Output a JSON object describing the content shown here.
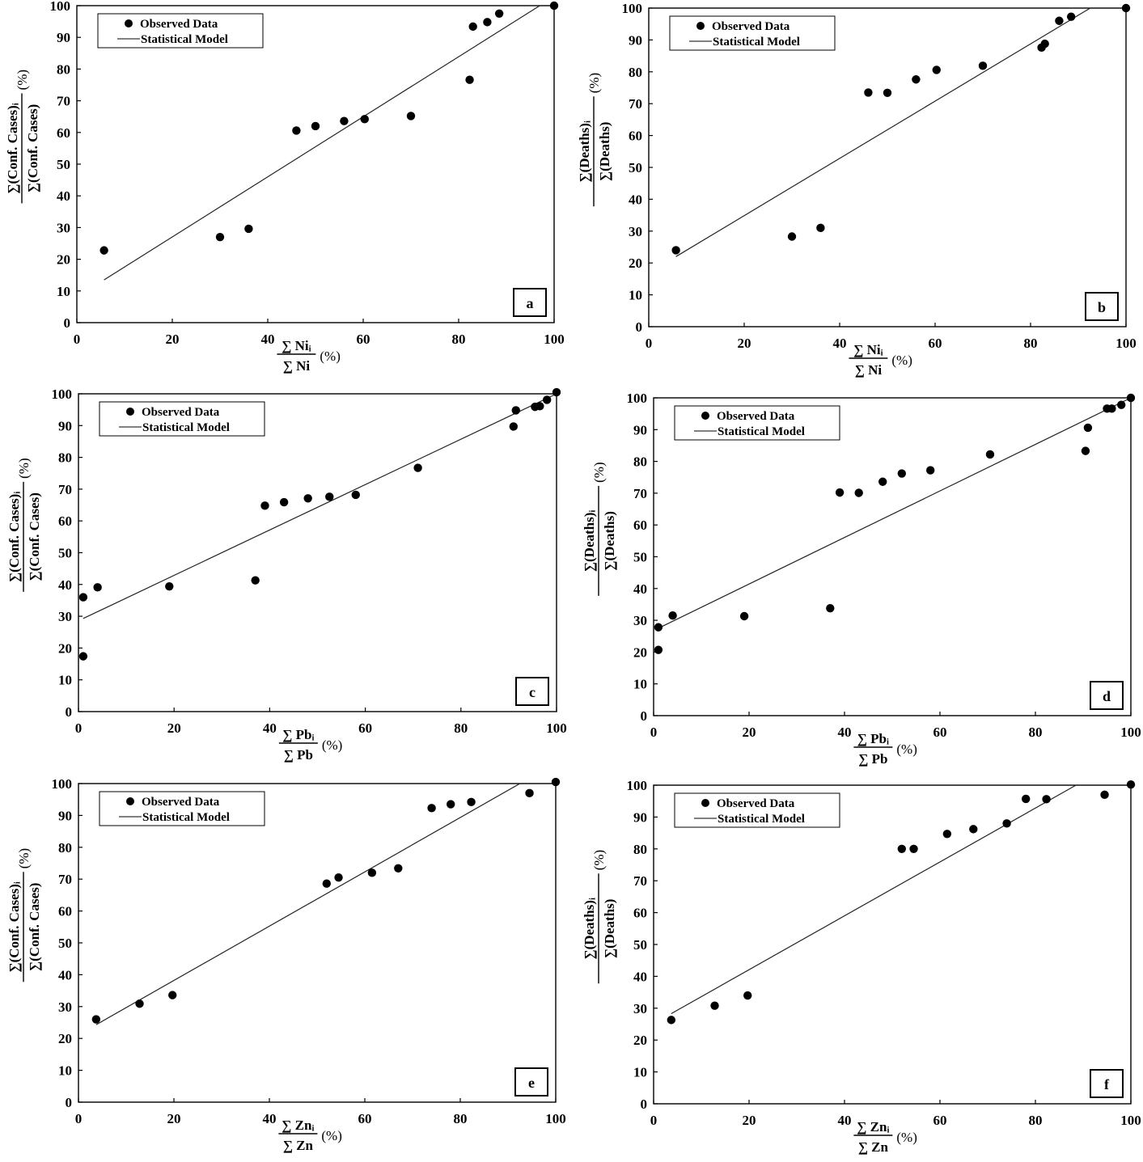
{
  "chart_data": [
    {
      "type": "scatter",
      "panel_label": "a",
      "xlim": [
        0,
        100
      ],
      "ylim": [
        0,
        100
      ],
      "xticks": [
        0,
        20,
        40,
        60,
        80,
        100
      ],
      "yticks": [
        0,
        10,
        20,
        30,
        40,
        50,
        60,
        70,
        80,
        90,
        100
      ],
      "xlabel": {
        "numerator": "∑ Niᵢ",
        "denominator": "∑ Ni",
        "unit": "(%)"
      },
      "ylabel": {
        "numerator": "∑(Conf. Cases)ᵢ",
        "denominator": "∑(Conf. Cases)",
        "unit": "(%)"
      },
      "legend": {
        "observed": "Observed Data",
        "model": "Statistical Model",
        "position": "top-left"
      },
      "series": [
        {
          "name": "Observed Data",
          "kind": "points",
          "x": [
            5.7,
            30,
            36,
            46,
            50,
            56,
            60.3,
            70,
            82.3,
            83,
            86,
            88.5,
            100
          ],
          "y": [
            22.8,
            27,
            29.6,
            60.6,
            62,
            63.6,
            64.2,
            65.2,
            76.6,
            93.4,
            94.8,
            97.5,
            100
          ]
        },
        {
          "name": "Statistical Model",
          "kind": "line",
          "x": [
            5.7,
            97
          ],
          "y": [
            13.5,
            100
          ]
        }
      ]
    },
    {
      "type": "scatter",
      "panel_label": "b",
      "xlim": [
        0,
        100
      ],
      "ylim": [
        0,
        100
      ],
      "xticks": [
        0,
        20,
        40,
        60,
        80,
        100
      ],
      "yticks": [
        0,
        10,
        20,
        30,
        40,
        50,
        60,
        70,
        80,
        90,
        100
      ],
      "xlabel": {
        "numerator": "∑ Niᵢ",
        "denominator": "∑ Ni",
        "unit": "(%)"
      },
      "ylabel": {
        "numerator": "∑(Deaths)ᵢ",
        "denominator": "∑(Deaths)",
        "unit": "(%)"
      },
      "legend": {
        "observed": "Observed Data",
        "model": "Statistical Model",
        "position": "top-left"
      },
      "series": [
        {
          "name": "Observed Data",
          "kind": "points",
          "x": [
            5.7,
            30,
            36,
            46,
            50,
            56,
            60.3,
            70,
            82.3,
            83,
            86,
            88.5,
            100
          ],
          "y": [
            24,
            28.3,
            31,
            73.5,
            73.4,
            77.6,
            80.6,
            81.9,
            87.6,
            88.8,
            96,
            97.3,
            100
          ]
        },
        {
          "name": "Statistical Model",
          "kind": "line",
          "x": [
            5.7,
            92.5
          ],
          "y": [
            22,
            100
          ]
        }
      ]
    },
    {
      "type": "scatter",
      "panel_label": "c",
      "xlim": [
        0,
        100
      ],
      "ylim": [
        0,
        100
      ],
      "xticks": [
        0,
        20,
        40,
        60,
        80,
        100
      ],
      "yticks": [
        0,
        10,
        20,
        30,
        40,
        50,
        60,
        70,
        80,
        90,
        100
      ],
      "xlabel": {
        "numerator": "∑ Pbᵢ",
        "denominator": "∑ Pb",
        "unit": "(%)"
      },
      "ylabel": {
        "numerator": "∑(Conf. Cases)ᵢ",
        "denominator": "∑(Conf. Cases)",
        "unit": "(%)"
      },
      "legend": {
        "observed": "Observed Data",
        "model": "Statistical Model",
        "position": "top-left"
      },
      "series": [
        {
          "name": "Observed Data",
          "kind": "points",
          "x": [
            1,
            1,
            4,
            19,
            37,
            39,
            43,
            48,
            52.5,
            58,
            71,
            91,
            91.5,
            95.5,
            96.5,
            98,
            100
          ],
          "y": [
            17.4,
            36,
            39.1,
            39.4,
            41.3,
            64.8,
            65.9,
            67.1,
            67.6,
            68.2,
            76.7,
            89.7,
            94.8,
            95.9,
            96.1,
            98.1,
            100.5
          ]
        },
        {
          "name": "Statistical Model",
          "kind": "line",
          "x": [
            1,
            100
          ],
          "y": [
            29.3,
            100
          ]
        }
      ]
    },
    {
      "type": "scatter",
      "panel_label": "d",
      "xlim": [
        0,
        100
      ],
      "ylim": [
        0,
        100
      ],
      "xticks": [
        0,
        20,
        40,
        60,
        80,
        100
      ],
      "yticks": [
        0,
        10,
        20,
        30,
        40,
        50,
        60,
        70,
        80,
        90,
        100
      ],
      "xlabel": {
        "numerator": "∑ Pbᵢ",
        "denominator": "∑ Pb",
        "unit": "(%)"
      },
      "ylabel": {
        "numerator": "∑(Deaths)ᵢ",
        "denominator": "∑(Deaths)",
        "unit": "(%)"
      },
      "legend": {
        "observed": "Observed Data",
        "model": "Statistical Model",
        "position": "top-left"
      },
      "series": [
        {
          "name": "Observed Data",
          "kind": "points",
          "x": [
            1,
            1,
            4,
            19,
            37,
            39,
            43,
            48,
            52,
            58,
            70.5,
            90.5,
            91,
            95,
            96,
            98,
            100
          ],
          "y": [
            20.7,
            27.8,
            31.5,
            31.3,
            33.8,
            70.2,
            70.1,
            73.6,
            76.2,
            77.2,
            82.2,
            83.3,
            90.6,
            96.6,
            96.6,
            97.8,
            100
          ]
        },
        {
          "name": "Statistical Model",
          "kind": "line",
          "x": [
            1,
            100
          ],
          "y": [
            27.5,
            100
          ]
        }
      ]
    },
    {
      "type": "scatter",
      "panel_label": "e",
      "xlim": [
        0,
        100
      ],
      "ylim": [
        0,
        100
      ],
      "xticks": [
        0,
        20,
        40,
        60,
        80,
        100
      ],
      "yticks": [
        0,
        10,
        20,
        30,
        40,
        50,
        60,
        70,
        80,
        90,
        100
      ],
      "xlabel": {
        "numerator": "∑ Znᵢ",
        "denominator": "∑ Zn",
        "unit": "(%)"
      },
      "ylabel": {
        "numerator": "∑(Conf. Cases)ᵢ",
        "denominator": "∑(Conf. Cases)",
        "unit": "(%)"
      },
      "legend": {
        "observed": "Observed Data",
        "model": "Statistical Model",
        "position": "top-left"
      },
      "series": [
        {
          "name": "Observed Data",
          "kind": "points",
          "x": [
            3.7,
            12.8,
            19.7,
            52,
            54.5,
            61.5,
            67,
            74,
            78,
            82.3,
            94.5,
            100
          ],
          "y": [
            26,
            30.9,
            33.6,
            68.6,
            70.5,
            72,
            73.4,
            92.3,
            93.5,
            94.2,
            97,
            100.5
          ]
        },
        {
          "name": "Statistical Model",
          "kind": "line",
          "x": [
            3.7,
            92.5
          ],
          "y": [
            24.3,
            100
          ]
        }
      ]
    },
    {
      "type": "scatter",
      "panel_label": "f",
      "xlim": [
        0,
        100
      ],
      "ylim": [
        0,
        100
      ],
      "xticks": [
        0,
        20,
        40,
        60,
        80,
        100
      ],
      "yticks": [
        0,
        10,
        20,
        30,
        40,
        50,
        60,
        70,
        80,
        90,
        100
      ],
      "xlabel": {
        "numerator": "∑ Znᵢ",
        "denominator": "∑ Zn",
        "unit": "(%)"
      },
      "ylabel": {
        "numerator": "∑(Deaths)ᵢ",
        "denominator": "∑(Deaths)",
        "unit": "(%)"
      },
      "legend": {
        "observed": "Observed Data",
        "model": "Statistical Model",
        "position": "top-left"
      },
      "series": [
        {
          "name": "Observed Data",
          "kind": "points",
          "x": [
            3.7,
            12.8,
            19.7,
            52,
            54.5,
            61.5,
            67,
            74,
            78,
            82.3,
            94.5,
            100
          ],
          "y": [
            26.3,
            30.8,
            34,
            80,
            80,
            84.7,
            86.2,
            88,
            95.7,
            95.6,
            97,
            100.2
          ]
        },
        {
          "name": "Statistical Model",
          "kind": "line",
          "x": [
            3.7,
            88.5
          ],
          "y": [
            28.3,
            100
          ]
        }
      ]
    }
  ]
}
